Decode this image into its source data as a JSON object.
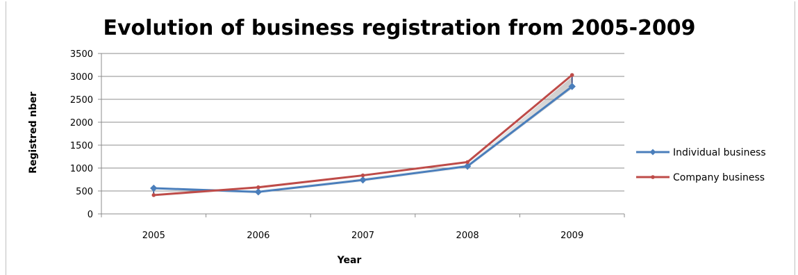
{
  "chart_data": {
    "type": "line",
    "title": "Evolution of business registration from 2005-2009",
    "xlabel": "Year",
    "ylabel": "Registred nber",
    "categories": [
      "2005",
      "2006",
      "2007",
      "2008",
      "2009"
    ],
    "ylim": [
      0,
      3500
    ],
    "yticks": [
      0,
      500,
      1000,
      1500,
      2000,
      2500,
      3000,
      3500
    ],
    "grid": true,
    "legend_position": "right",
    "series": [
      {
        "name": "Individual business",
        "color": "#4a7ebb",
        "marker": "diamond",
        "values": [
          560,
          480,
          740,
          1040,
          2780
        ]
      },
      {
        "name": "Company business",
        "color": "#be4b48",
        "marker": "circle",
        "values": [
          410,
          580,
          840,
          1130,
          3030
        ]
      }
    ]
  }
}
